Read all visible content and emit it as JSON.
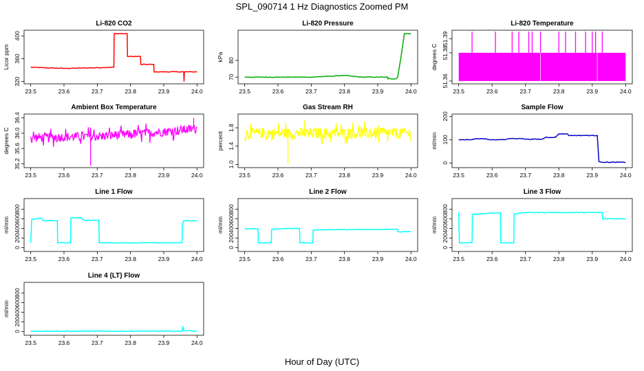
{
  "figure": {
    "title": "SPL_090714  1 Hz Diagnostics Zoomed PM",
    "xlabel": "Hour of Day (UTC)"
  },
  "chart_data": [
    {
      "id": "co2",
      "type": "line",
      "title": "Li-820 CO2",
      "xlabel": "",
      "ylabel": "Licor ppm",
      "color": "#ff0000",
      "xlim": [
        23.48,
        24.02
      ],
      "ylim": [
        316,
        410
      ],
      "xticks": [
        "23.5",
        "23.6",
        "23.7",
        "23.8",
        "23.9",
        "24.0"
      ],
      "yticks": [
        "320",
        "360",
        "400"
      ],
      "series": [
        {
          "values": [
            [
              23.5,
              345
            ],
            [
              23.6,
              343
            ],
            [
              23.75,
              345
            ],
            [
              23.751,
              404
            ],
            [
              23.79,
              404
            ],
            [
              23.791,
              364
            ],
            [
              23.83,
              364
            ],
            [
              23.831,
              350
            ],
            [
              23.87,
              350
            ],
            [
              23.871,
              337
            ],
            [
              23.96,
              337
            ],
            [
              23.961,
              320
            ],
            [
              23.962,
              337
            ],
            [
              24.0,
              337
            ]
          ]
        }
      ]
    },
    {
      "id": "pressure",
      "type": "line",
      "title": "Li-820 Pressure",
      "xlabel": "",
      "ylabel": "kPa",
      "color": "#00aa00",
      "xlim": [
        23.48,
        24.02
      ],
      "ylim": [
        66,
        98
      ],
      "xticks": [
        "23.5",
        "23.6",
        "23.7",
        "23.8",
        "23.9",
        "24.0"
      ],
      "yticks": [
        "70",
        "80"
      ],
      "series": [
        {
          "values": [
            [
              23.5,
              70
            ],
            [
              23.6,
              70
            ],
            [
              23.7,
              70
            ],
            [
              23.8,
              71
            ],
            [
              23.85,
              70
            ],
            [
              23.93,
              70
            ],
            [
              23.93,
              69
            ],
            [
              23.955,
              69
            ],
            [
              23.96,
              70
            ],
            [
              23.97,
              82
            ],
            [
              23.975,
              89
            ],
            [
              23.98,
              96
            ],
            [
              24.0,
              96
            ]
          ]
        }
      ]
    },
    {
      "id": "li820-temp",
      "type": "area",
      "title": "Li-820 Temperature",
      "xlabel": "",
      "ylabel": "degrees C",
      "color": "#ff00ff",
      "xlim": [
        23.48,
        24.02
      ],
      "ylim": [
        51.358,
        51.396
      ],
      "xticks": [
        "23.5",
        "23.6",
        "23.7",
        "23.8",
        "23.9",
        "24.0"
      ],
      "yticks": [
        "51.36",
        "51.38",
        "51.39"
      ],
      "series": [
        {
          "band": [
            23.5,
            24.0,
            51.36,
            51.38
          ],
          "spikes": [
            23.54,
            23.61,
            23.66,
            23.68,
            23.71,
            23.72,
            23.745,
            23.8,
            23.82,
            23.85,
            23.88,
            23.9,
            23.91,
            23.93
          ]
        }
      ]
    },
    {
      "id": "ambient-temp",
      "type": "line",
      "title": "Ambient Box Temperature",
      "xlabel": "",
      "ylabel": "degrees C",
      "color": "#ff00ff",
      "xlim": [
        23.48,
        24.02
      ],
      "ylim": [
        35.1,
        36.5
      ],
      "xticks": [
        "23.5",
        "23.6",
        "23.7",
        "23.8",
        "23.9",
        "24.0"
      ],
      "yticks": [
        "35.2",
        "35.6",
        "36.0",
        "36.4"
      ],
      "series": [
        {
          "values": [
            [
              23.5,
              35.88
            ],
            [
              23.6,
              35.9
            ],
            [
              23.7,
              35.92
            ],
            [
              23.8,
              35.97
            ],
            [
              23.9,
              36.04
            ],
            [
              24.0,
              36.12
            ]
          ],
          "noise": 0.12,
          "minimum": [
            23.68,
            35.15
          ],
          "maximum": [
            23.99,
            36.4
          ]
        }
      ]
    },
    {
      "id": "rh",
      "type": "line",
      "title": "Gas Stream RH",
      "xlabel": "",
      "ylabel": "percent",
      "color": "#ffff00",
      "xlim": [
        23.48,
        24.02
      ],
      "ylim": [
        0.93,
        2.1
      ],
      "xticks": [
        "23.5",
        "23.6",
        "23.7",
        "23.8",
        "23.9",
        "24.0"
      ],
      "yticks": [
        "1.0",
        "1.4",
        "1.8"
      ],
      "series": [
        {
          "values": [
            [
              23.5,
              1.68
            ],
            [
              24.0,
              1.68
            ]
          ],
          "noise": 0.12,
          "minimum": [
            23.63,
            1.01
          ],
          "maximum": [
            23.68,
            1.96
          ]
        }
      ]
    },
    {
      "id": "sample-flow",
      "type": "line",
      "title": "Sample Flow",
      "xlabel": "",
      "ylabel": "ml/min",
      "color": "#0000cc",
      "xlim": [
        23.48,
        24.02
      ],
      "ylim": [
        -20,
        210
      ],
      "xticks": [
        "23.5",
        "23.6",
        "23.7",
        "23.8",
        "23.9",
        "24.0"
      ],
      "yticks": [
        "0",
        "100",
        "200"
      ],
      "series": [
        {
          "values": [
            [
              23.5,
              100
            ],
            [
              23.54,
              100
            ],
            [
              23.55,
              104
            ],
            [
              23.58,
              104
            ],
            [
              23.59,
              100
            ],
            [
              23.64,
              100
            ],
            [
              23.65,
              105
            ],
            [
              23.69,
              105
            ],
            [
              23.7,
              102
            ],
            [
              23.75,
              102
            ],
            [
              23.76,
              110
            ],
            [
              23.79,
              110
            ],
            [
              23.8,
              125
            ],
            [
              23.825,
              125
            ],
            [
              23.83,
              118
            ],
            [
              23.915,
              118
            ],
            [
              23.92,
              6
            ],
            [
              23.93,
              3
            ],
            [
              24.0,
              3
            ]
          ]
        }
      ]
    },
    {
      "id": "line1",
      "type": "line",
      "title": "Line 1 Flow",
      "xlabel": "",
      "ylabel": "ml/min",
      "color": "#00ffff",
      "xlim": [
        23.48,
        24.02
      ],
      "ylim": [
        -80,
        1020
      ],
      "xticks": [
        "23.5",
        "23.6",
        "23.7",
        "23.8",
        "23.9",
        "24.0"
      ],
      "yticks": [
        "0",
        "200",
        "400",
        "600",
        "800"
      ],
      "series": [
        {
          "values": [
            [
              23.5,
              100
            ],
            [
              23.503,
              590
            ],
            [
              23.53,
              610
            ],
            [
              23.54,
              560
            ],
            [
              23.58,
              560
            ],
            [
              23.581,
              100
            ],
            [
              23.62,
              100
            ],
            [
              23.621,
              620
            ],
            [
              23.65,
              620
            ],
            [
              23.66,
              570
            ],
            [
              23.705,
              570
            ],
            [
              23.706,
              100
            ],
            [
              23.955,
              100
            ],
            [
              23.956,
              480
            ],
            [
              23.96,
              560
            ],
            [
              24.0,
              560
            ]
          ]
        }
      ]
    },
    {
      "id": "line2",
      "type": "line",
      "title": "Line 2 Flow",
      "xlabel": "",
      "ylabel": "ml/min",
      "color": "#00ffff",
      "xlim": [
        23.48,
        24.02
      ],
      "ylim": [
        -80,
        1020
      ],
      "xticks": [
        "23.5",
        "23.6",
        "23.7",
        "23.8",
        "23.9",
        "24.0"
      ],
      "yticks": [
        "0",
        "200",
        "400",
        "600",
        "800"
      ],
      "series": [
        {
          "values": [
            [
              23.5,
              390
            ],
            [
              23.54,
              390
            ],
            [
              23.541,
              100
            ],
            [
              23.58,
              100
            ],
            [
              23.581,
              380
            ],
            [
              23.6,
              390
            ],
            [
              23.63,
              400
            ],
            [
              23.665,
              400
            ],
            [
              23.666,
              100
            ],
            [
              23.705,
              100
            ],
            [
              23.706,
              370
            ],
            [
              23.96,
              380
            ],
            [
              23.961,
              330
            ],
            [
              24.0,
              330
            ]
          ]
        }
      ]
    },
    {
      "id": "line3",
      "type": "line",
      "title": "Line 3 Flow",
      "xlabel": "",
      "ylabel": "ml/min",
      "color": "#00ffff",
      "xlim": [
        23.48,
        24.02
      ],
      "ylim": [
        -80,
        1020
      ],
      "xticks": [
        "23.5",
        "23.6",
        "23.7",
        "23.8",
        "23.9",
        "24.0"
      ],
      "yticks": [
        "0",
        "200",
        "400",
        "600",
        "800"
      ],
      "series": [
        {
          "values": [
            [
              23.5,
              730
            ],
            [
              23.502,
              100
            ],
            [
              23.54,
              100
            ],
            [
              23.541,
              690
            ],
            [
              23.6,
              720
            ],
            [
              23.625,
              720
            ],
            [
              23.626,
              100
            ],
            [
              23.665,
              100
            ],
            [
              23.666,
              700
            ],
            [
              23.7,
              730
            ],
            [
              23.93,
              730
            ],
            [
              23.931,
              600
            ],
            [
              24.0,
              600
            ]
          ]
        }
      ]
    },
    {
      "id": "line4",
      "type": "line",
      "title": "Line 4 (LT) Flow",
      "xlabel": "",
      "ylabel": "ml/min",
      "color": "#00ffff",
      "xlim": [
        23.48,
        24.02
      ],
      "ylim": [
        -80,
        1020
      ],
      "xticks": [
        "23.5",
        "23.6",
        "23.7",
        "23.8",
        "23.9",
        "24.0"
      ],
      "yticks": [
        "0",
        "200",
        "400",
        "600",
        "800"
      ],
      "series": [
        {
          "values": [
            [
              23.5,
              5
            ],
            [
              23.955,
              5
            ],
            [
              23.957,
              110
            ],
            [
              23.96,
              20
            ],
            [
              24.0,
              5
            ]
          ]
        }
      ]
    }
  ]
}
